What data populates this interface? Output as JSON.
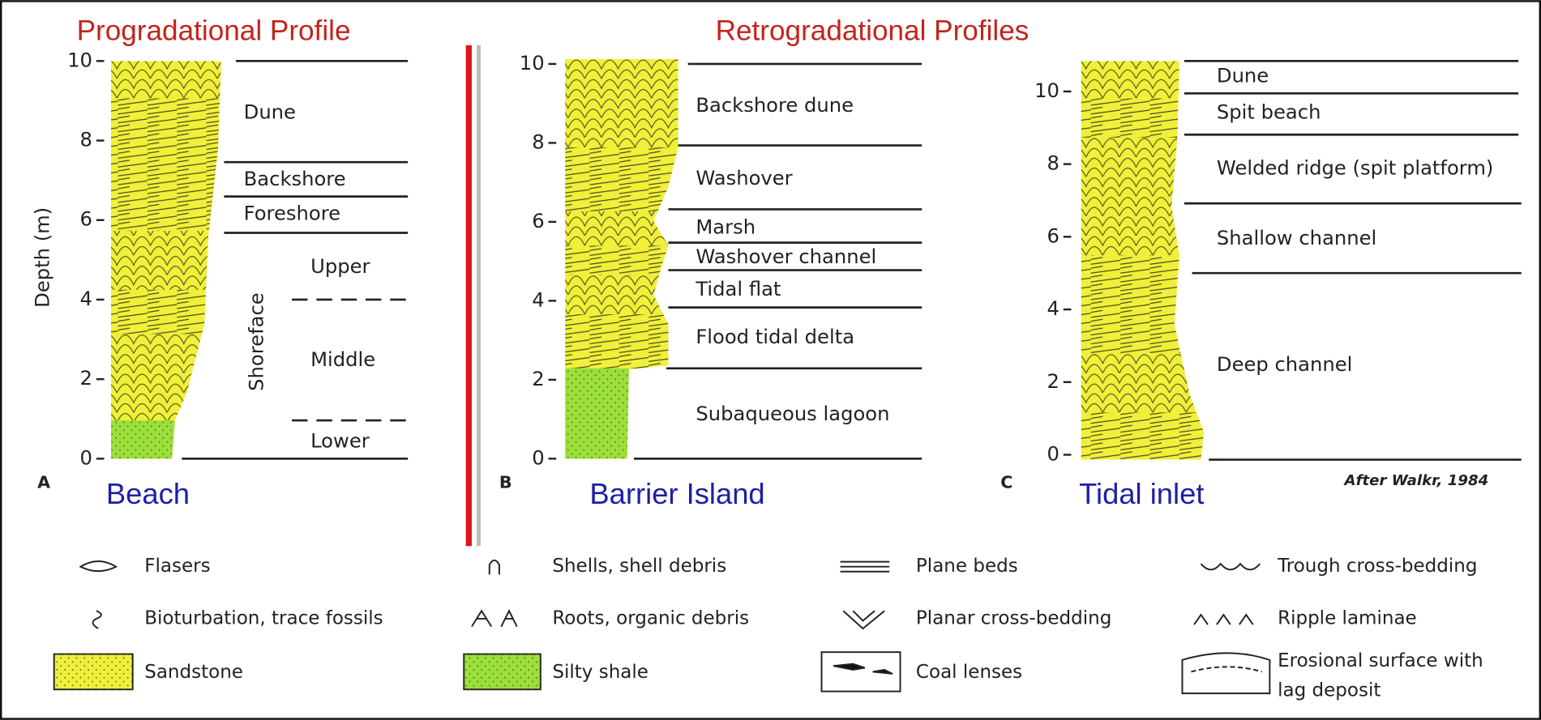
{
  "titles": {
    "progradational": "Progradational Profile",
    "retrogradational": "Retrogradational Profiles"
  },
  "axis_label": "Depth (m)",
  "panels": [
    {
      "letter": "A",
      "name": "Beach",
      "ticks": [
        0,
        2,
        4,
        6,
        8,
        10
      ],
      "units": [
        "Dune",
        "Backshore",
        "Foreshore",
        "Upper",
        "Middle",
        "Lower"
      ],
      "group": "Shoreface"
    },
    {
      "letter": "B",
      "name": "Barrier Island",
      "ticks": [
        0,
        2,
        4,
        6,
        8,
        10
      ],
      "units": [
        "Backshore dune",
        "Washover",
        "Marsh",
        "Washover channel",
        "Tidal flat",
        "Flood tidal delta",
        "Subaqueous lagoon"
      ]
    },
    {
      "letter": "C",
      "name": "Tidal inlet",
      "ticks": [
        0,
        2,
        4,
        6,
        8,
        10
      ],
      "units": [
        "Dune",
        "Spit beach",
        "Welded ridge (spit platform)",
        "Shallow channel",
        "Deep channel"
      ]
    }
  ],
  "credit": "After Walkr, 1984",
  "legend": [
    "Flasers",
    "Bioturbation, trace fossils",
    "Sandstone",
    "Shells, shell debris",
    "Roots, organic debris",
    "Silty shale",
    "Plane beds",
    "Planar cross-bedding",
    "Coal lenses",
    "Trough cross-bedding",
    "Ripple laminae",
    "Erosional surface with lag deposit"
  ]
}
